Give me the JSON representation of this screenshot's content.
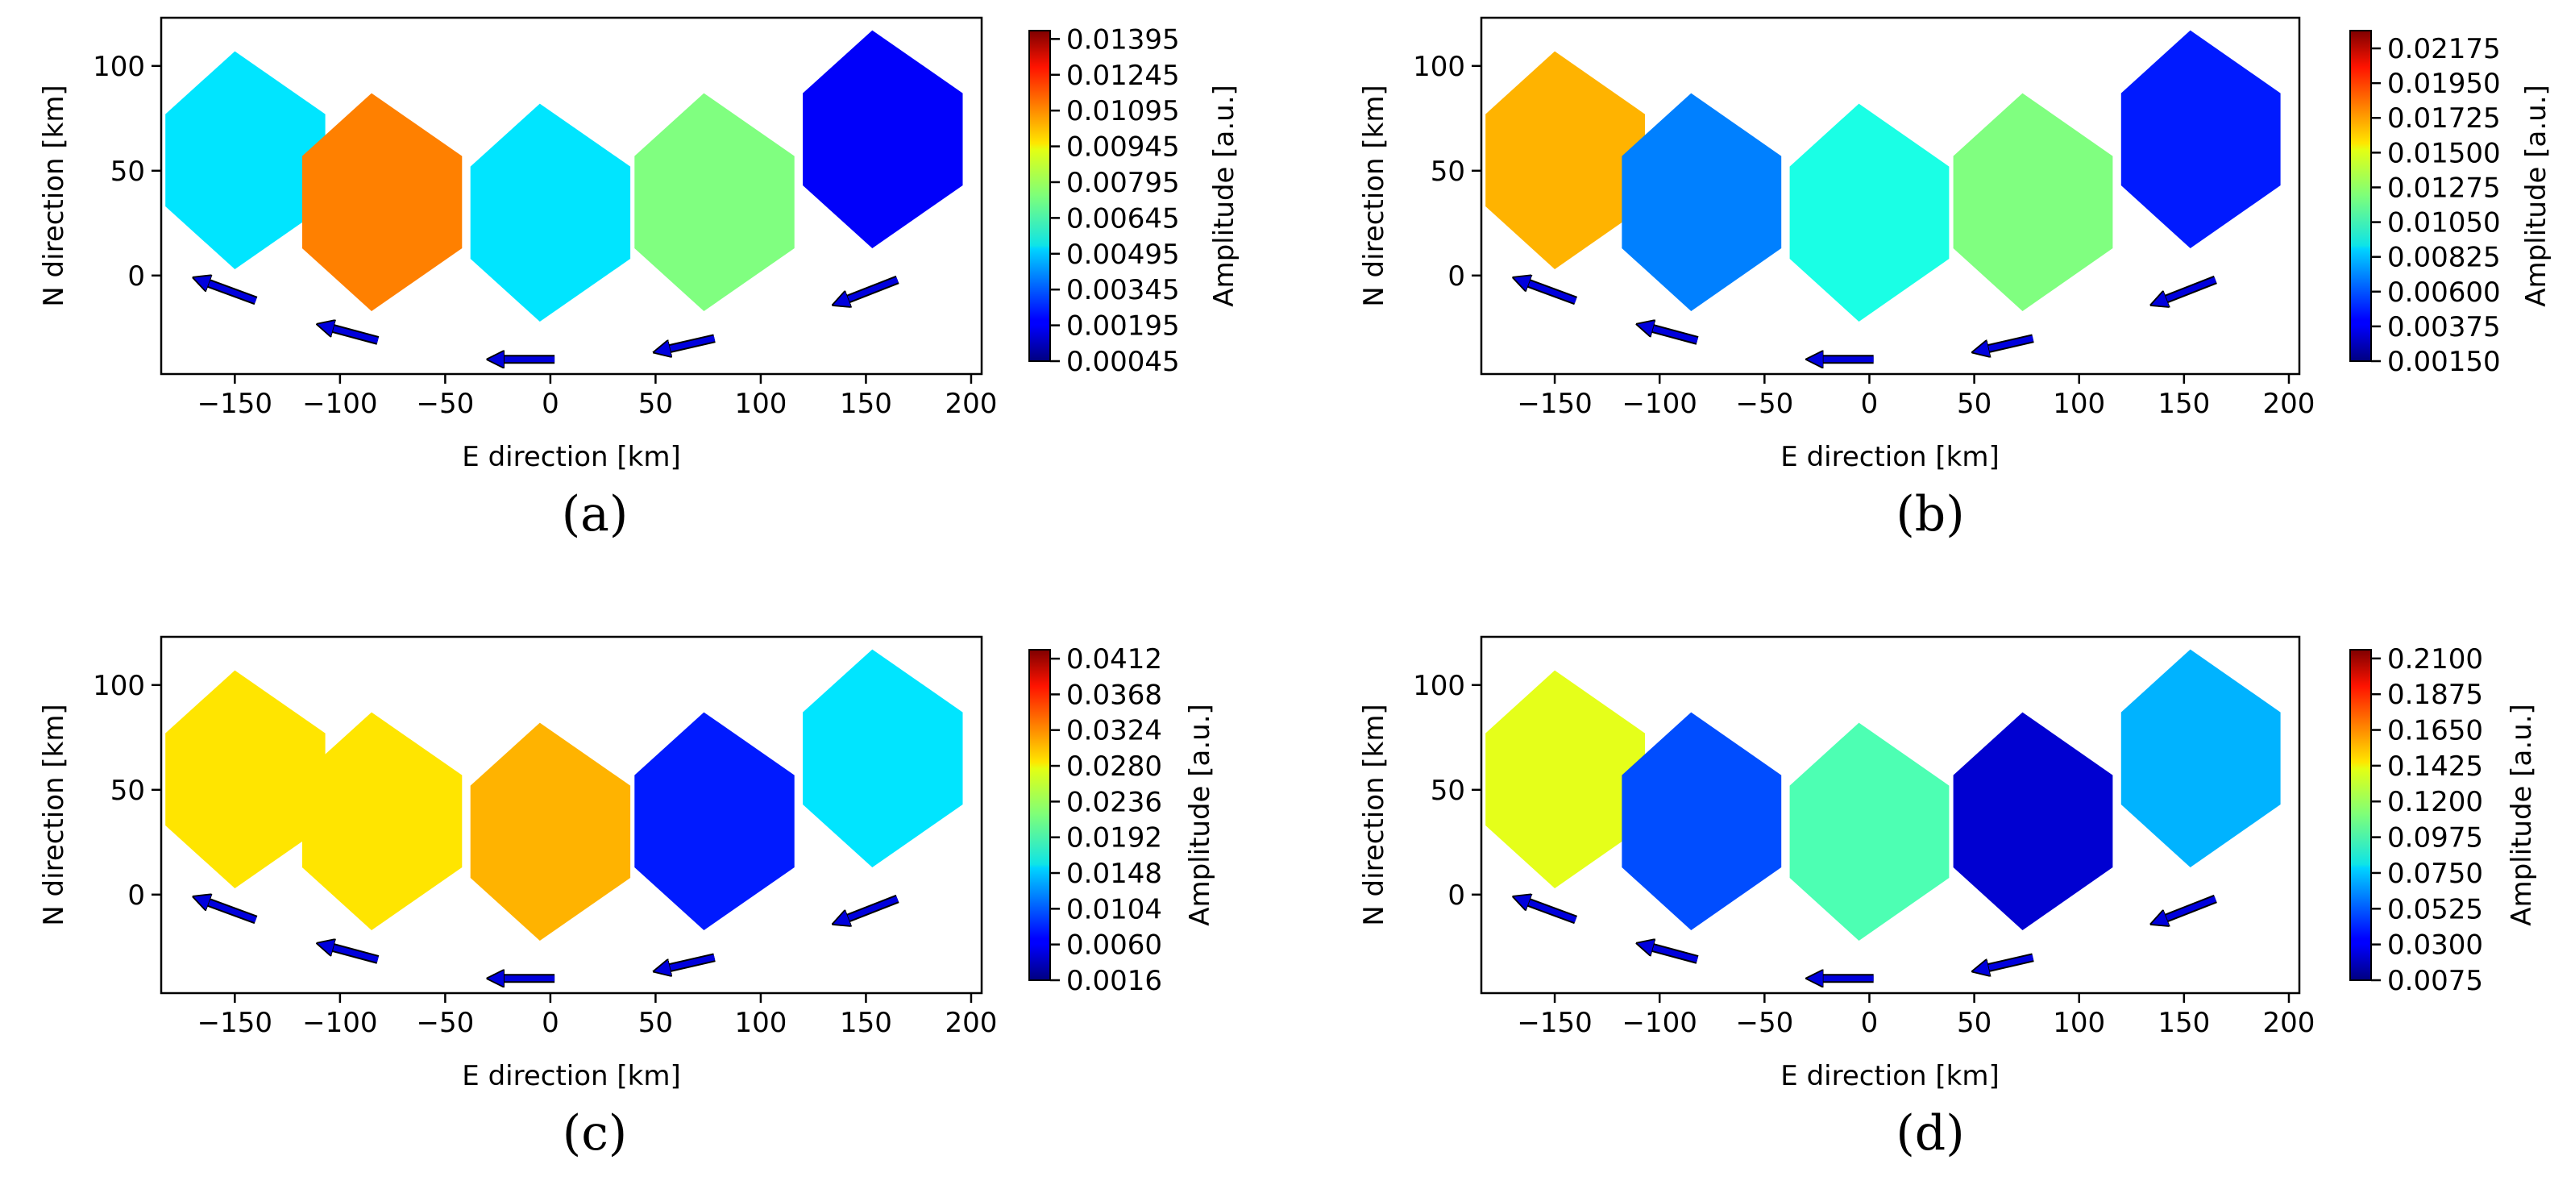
{
  "chart_data": [
    {
      "type": "heatmap",
      "panel": "(a)",
      "xlabel": "E direction [km]",
      "ylabel": "N direction [km]",
      "xlim": [
        -185,
        205
      ],
      "ylim": [
        -47,
        123
      ],
      "xticks": [
        -150,
        -100,
        -50,
        0,
        50,
        100,
        150,
        200
      ],
      "xtick_labels": [
        "−150",
        "−100",
        "−50",
        "0",
        "50",
        "100",
        "150",
        "200"
      ],
      "yticks": [
        0,
        50,
        100
      ],
      "ytick_labels": [
        "0",
        "50",
        "100"
      ],
      "colorbar_label": "Amplitude [a.u.]",
      "colorbar_range": [
        0.00045,
        0.0143
      ],
      "colorbar_ticks": [
        0.00045,
        0.00195,
        0.00345,
        0.00495,
        0.00645,
        0.00795,
        0.00945,
        0.01095,
        0.01245,
        0.01395
      ],
      "colorbar_tick_labels": [
        "0.00045",
        "0.00195",
        "0.00345",
        "0.00495",
        "0.00645",
        "0.00795",
        "0.00945",
        "0.01095",
        "0.01245",
        "0.01395"
      ],
      "patches": [
        {
          "name": "patch-1",
          "center": [
            -145,
            55
          ],
          "level": 0.35
        },
        {
          "name": "patch-2",
          "center": [
            -80,
            35
          ],
          "level": 0.75
        },
        {
          "name": "patch-3",
          "center": [
            0,
            30
          ],
          "level": 0.35
        },
        {
          "name": "patch-4",
          "center": [
            78,
            35
          ],
          "level": 0.5
        },
        {
          "name": "patch-5",
          "center": [
            158,
            65
          ],
          "level": 0.12
        }
      ]
    },
    {
      "type": "heatmap",
      "panel": "(b)",
      "xlabel": "E direction [km]",
      "ylabel": "N direction [km]",
      "xlim": [
        -185,
        205
      ],
      "ylim": [
        -47,
        123
      ],
      "xticks": [
        -150,
        -100,
        -50,
        0,
        50,
        100,
        150,
        200
      ],
      "xtick_labels": [
        "−150",
        "−100",
        "−50",
        "0",
        "50",
        "100",
        "150",
        "200"
      ],
      "yticks": [
        0,
        50,
        100
      ],
      "ytick_labels": [
        "0",
        "50",
        "100"
      ],
      "colorbar_label": "Amplitude [a.u.]",
      "colorbar_range": [
        0.0015,
        0.0229
      ],
      "colorbar_ticks": [
        0.0015,
        0.00375,
        0.006,
        0.00825,
        0.0105,
        0.01275,
        0.015,
        0.01725,
        0.0195,
        0.02175
      ],
      "colorbar_tick_labels": [
        "0.00150",
        "0.00375",
        "0.00600",
        "0.00825",
        "0.01050",
        "0.01275",
        "0.01500",
        "0.01725",
        "0.01950",
        "0.02175"
      ],
      "patches": [
        {
          "name": "patch-1",
          "center": [
            -145,
            55
          ],
          "level": 0.7
        },
        {
          "name": "patch-2",
          "center": [
            -80,
            35
          ],
          "level": 0.25
        },
        {
          "name": "patch-3",
          "center": [
            0,
            30
          ],
          "level": 0.4
        },
        {
          "name": "patch-4",
          "center": [
            78,
            35
          ],
          "level": 0.5
        },
        {
          "name": "patch-5",
          "center": [
            158,
            65
          ],
          "level": 0.15
        }
      ]
    },
    {
      "type": "heatmap",
      "panel": "(c)",
      "xlabel": "E direction [km]",
      "ylabel": "N direction [km]",
      "xlim": [
        -185,
        205
      ],
      "ylim": [
        -47,
        123
      ],
      "xticks": [
        -150,
        -100,
        -50,
        0,
        50,
        100,
        150,
        200
      ],
      "xtick_labels": [
        "−150",
        "−100",
        "−50",
        "0",
        "50",
        "100",
        "150",
        "200"
      ],
      "yticks": [
        0,
        50,
        100
      ],
      "ytick_labels": [
        "0",
        "50",
        "100"
      ],
      "colorbar_label": "Amplitude [a.u.]",
      "colorbar_range": [
        0.0016,
        0.0423
      ],
      "colorbar_ticks": [
        0.0016,
        0.006,
        0.0104,
        0.0148,
        0.0192,
        0.0236,
        0.028,
        0.0324,
        0.0368,
        0.0412
      ],
      "colorbar_tick_labels": [
        "0.0016",
        "0.0060",
        "0.0104",
        "0.0148",
        "0.0192",
        "0.0236",
        "0.0280",
        "0.0324",
        "0.0368",
        "0.0412"
      ],
      "patches": [
        {
          "name": "patch-1",
          "center": [
            -145,
            55
          ],
          "level": 0.65
        },
        {
          "name": "patch-2",
          "center": [
            -80,
            35
          ],
          "level": 0.65
        },
        {
          "name": "patch-3",
          "center": [
            0,
            30
          ],
          "level": 0.7
        },
        {
          "name": "patch-4",
          "center": [
            78,
            35
          ],
          "level": 0.15
        },
        {
          "name": "patch-5",
          "center": [
            158,
            65
          ],
          "level": 0.35
        }
      ]
    },
    {
      "type": "heatmap",
      "panel": "(d)",
      "xlabel": "E direction [km]",
      "ylabel": "N direction [km]",
      "xlim": [
        -185,
        205
      ],
      "ylim": [
        -47,
        123
      ],
      "xticks": [
        -150,
        -100,
        -50,
        0,
        50,
        100,
        150,
        200
      ],
      "xtick_labels": [
        "−150",
        "−100",
        "−50",
        "0",
        "50",
        "100",
        "150",
        "200"
      ],
      "yticks": [
        0,
        50,
        100
      ],
      "ytick_labels": [
        "0",
        "50",
        "100"
      ],
      "colorbar_label": "Amplitude [a.u.]",
      "colorbar_range": [
        0.0075,
        0.2155
      ],
      "colorbar_ticks": [
        0.0075,
        0.03,
        0.0525,
        0.075,
        0.0975,
        0.12,
        0.1425,
        0.165,
        0.1875,
        0.21
      ],
      "colorbar_tick_labels": [
        "0.0075",
        "0.0300",
        "0.0525",
        "0.0750",
        "0.0975",
        "0.1200",
        "0.1425",
        "0.1650",
        "0.1875",
        "0.2100"
      ],
      "patches": [
        {
          "name": "patch-1",
          "center": [
            -145,
            55
          ],
          "level": 0.6
        },
        {
          "name": "patch-2",
          "center": [
            -80,
            35
          ],
          "level": 0.2
        },
        {
          "name": "patch-3",
          "center": [
            0,
            30
          ],
          "level": 0.45
        },
        {
          "name": "patch-4",
          "center": [
            78,
            35
          ],
          "level": 0.08
        },
        {
          "name": "patch-5",
          "center": [
            158,
            65
          ],
          "level": 0.3
        }
      ]
    }
  ],
  "arrows": [
    {
      "tail": [
        -140,
        -12
      ],
      "head": [
        -167,
        -2
      ]
    },
    {
      "tail": [
        -82,
        -31
      ],
      "head": [
        -108,
        -24
      ]
    },
    {
      "tail": [
        2,
        -40
      ],
      "head": [
        -27,
        -40
      ]
    },
    {
      "tail": [
        78,
        -30
      ],
      "head": [
        52,
        -36
      ]
    },
    {
      "tail": [
        165,
        -2
      ],
      "head": [
        137,
        -13
      ]
    }
  ]
}
